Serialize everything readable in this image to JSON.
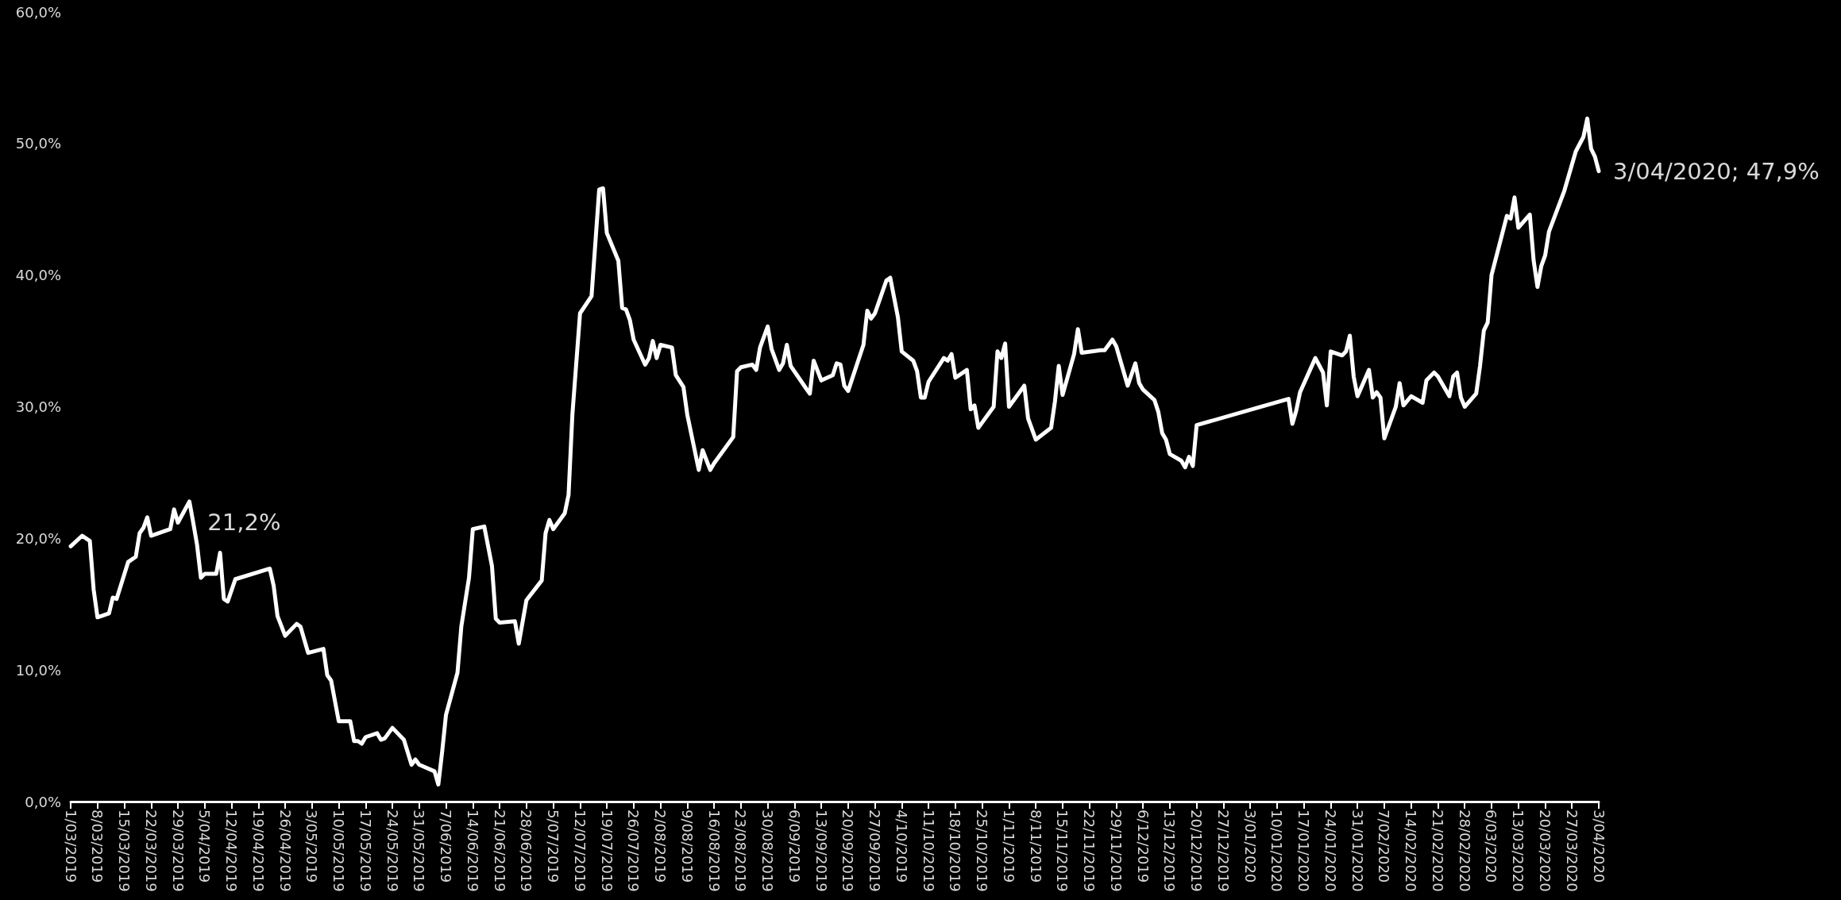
{
  "chart_data": {
    "type": "line",
    "line_style": "solid",
    "marker": "none",
    "grid": false,
    "x": [
      "2019-03-01",
      "2019-03-04",
      "2019-03-06",
      "2019-03-07",
      "2019-03-08",
      "2019-03-11",
      "2019-03-12",
      "2019-03-13",
      "2019-03-16",
      "2019-03-18",
      "2019-03-19",
      "2019-03-20",
      "2019-03-21",
      "2019-03-22",
      "2019-03-27",
      "2019-03-28",
      "2019-03-29",
      "2019-04-01",
      "2019-04-02",
      "2019-04-03",
      "2019-04-04",
      "2019-04-05",
      "2019-04-08",
      "2019-04-09",
      "2019-04-10",
      "2019-04-11",
      "2019-04-13",
      "2019-04-22",
      "2019-04-23",
      "2019-04-24",
      "2019-04-26",
      "2019-04-29",
      "2019-04-30",
      "2019-05-02",
      "2019-05-06",
      "2019-05-07",
      "2019-05-08",
      "2019-05-10",
      "2019-05-13",
      "2019-05-14",
      "2019-05-15",
      "2019-05-16",
      "2019-05-17",
      "2019-05-20",
      "2019-05-21",
      "2019-05-22",
      "2019-05-24",
      "2019-05-27",
      "2019-05-29",
      "2019-05-30",
      "2019-05-31",
      "2019-06-04",
      "2019-06-05",
      "2019-06-06",
      "2019-06-07",
      "2019-06-10",
      "2019-06-11",
      "2019-06-13",
      "2019-06-14",
      "2019-06-17",
      "2019-06-19",
      "2019-06-20",
      "2019-06-21",
      "2019-06-25",
      "2019-06-26",
      "2019-06-28",
      "2019-07-02",
      "2019-07-03",
      "2019-07-04",
      "2019-07-05",
      "2019-07-08",
      "2019-07-09",
      "2019-07-10",
      "2019-07-12",
      "2019-07-15",
      "2019-07-17",
      "2019-07-18",
      "2019-07-19",
      "2019-07-22",
      "2019-07-23",
      "2019-07-24",
      "2019-07-25",
      "2019-07-26",
      "2019-07-29",
      "2019-07-30",
      "2019-07-31",
      "2019-08-01",
      "2019-08-02",
      "2019-08-05",
      "2019-08-06",
      "2019-08-08",
      "2019-08-09",
      "2019-08-12",
      "2019-08-13",
      "2019-08-15",
      "2019-08-16",
      "2019-08-21",
      "2019-08-22",
      "2019-08-23",
      "2019-08-26",
      "2019-08-27",
      "2019-08-28",
      "2019-08-30",
      "2019-08-31",
      "2019-09-02",
      "2019-09-03",
      "2019-09-04",
      "2019-09-05",
      "2019-09-09",
      "2019-09-10",
      "2019-09-11",
      "2019-09-13",
      "2019-09-16",
      "2019-09-17",
      "2019-09-18",
      "2019-09-19",
      "2019-09-20",
      "2019-09-24",
      "2019-09-25",
      "2019-09-26",
      "2019-09-27",
      "2019-09-30",
      "2019-10-01",
      "2019-10-03",
      "2019-10-04",
      "2019-10-07",
      "2019-10-08",
      "2019-10-09",
      "2019-10-10",
      "2019-10-11",
      "2019-10-15",
      "2019-10-16",
      "2019-10-17",
      "2019-10-18",
      "2019-10-21",
      "2019-10-22",
      "2019-10-23",
      "2019-10-24",
      "2019-10-25",
      "2019-10-28",
      "2019-10-29",
      "2019-10-30",
      "2019-10-31",
      "2019-11-01",
      "2019-11-05",
      "2019-11-06",
      "2019-11-08",
      "2019-11-12",
      "2019-11-13",
      "2019-11-14",
      "2019-11-15",
      "2019-11-18",
      "2019-11-19",
      "2019-11-20",
      "2019-11-25",
      "2019-11-26",
      "2019-11-28",
      "2019-11-29",
      "2019-12-02",
      "2019-12-04",
      "2019-12-05",
      "2019-12-06",
      "2019-12-09",
      "2019-12-10",
      "2019-12-11",
      "2019-12-12",
      "2019-12-13",
      "2019-12-16",
      "2019-12-17",
      "2019-12-18",
      "2019-12-19",
      "2019-12-20",
      "2020-01-13",
      "2020-01-14",
      "2020-01-15",
      "2020-01-16",
      "2020-01-20",
      "2020-01-22",
      "2020-01-23",
      "2020-01-24",
      "2020-01-27",
      "2020-01-28",
      "2020-01-29",
      "2020-01-30",
      "2020-01-31",
      "2020-02-03",
      "2020-02-04",
      "2020-02-05",
      "2020-02-06",
      "2020-02-07",
      "2020-02-10",
      "2020-02-11",
      "2020-02-12",
      "2020-02-14",
      "2020-02-17",
      "2020-02-18",
      "2020-02-20",
      "2020-02-21",
      "2020-02-24",
      "2020-02-25",
      "2020-02-26",
      "2020-02-27",
      "2020-02-28",
      "2020-03-02",
      "2020-03-03",
      "2020-03-04",
      "2020-03-05",
      "2020-03-06",
      "2020-03-10",
      "2020-03-11",
      "2020-03-12",
      "2020-03-13",
      "2020-03-16",
      "2020-03-17",
      "2020-03-18",
      "2020-03-19",
      "2020-03-20",
      "2020-03-21",
      "2020-03-25",
      "2020-03-28",
      "2020-03-30",
      "2020-03-31",
      "2020-04-01",
      "2020-04-02",
      "2020-04-03"
    ],
    "series": [
      {
        "color": "#ffffff",
        "values": [
          19.4,
          20.2,
          19.8,
          16.1,
          14.0,
          14.3,
          15.5,
          15.4,
          18.2,
          18.6,
          20.4,
          20.8,
          21.6,
          20.2,
          20.7,
          22.2,
          21.2,
          22.8,
          21.2,
          19.5,
          17.0,
          17.3,
          17.3,
          18.9,
          15.4,
          15.2,
          16.9,
          17.7,
          16.4,
          14.1,
          12.6,
          13.5,
          13.3,
          11.3,
          11.6,
          9.6,
          9.2,
          6.1,
          6.1,
          4.6,
          4.6,
          4.4,
          4.9,
          5.2,
          4.7,
          4.8,
          5.6,
          4.7,
          2.8,
          3.2,
          2.8,
          2.3,
          1.3,
          3.8,
          6.6,
          9.8,
          13.3,
          17.0,
          20.7,
          20.9,
          17.9,
          13.9,
          13.6,
          13.7,
          12.0,
          15.3,
          16.8,
          20.4,
          21.4,
          20.7,
          21.9,
          23.3,
          29.4,
          37.1,
          38.4,
          46.5,
          46.6,
          43.2,
          41.1,
          37.5,
          37.4,
          36.6,
          35.1,
          33.2,
          33.7,
          35.0,
          33.7,
          34.7,
          34.5,
          32.4,
          31.5,
          29.4,
          25.2,
          26.7,
          25.2,
          25.7,
          27.7,
          32.7,
          33.0,
          33.2,
          32.8,
          34.5,
          36.1,
          34.4,
          32.8,
          33.3,
          34.7,
          33.1,
          31.4,
          31.0,
          33.5,
          32.0,
          32.4,
          33.3,
          33.2,
          31.6,
          31.2,
          34.7,
          37.3,
          36.7,
          37.1,
          39.6,
          39.8,
          36.8,
          34.2,
          33.5,
          32.7,
          30.7,
          30.7,
          31.9,
          33.7,
          33.5,
          34.0,
          32.2,
          32.8,
          29.8,
          30.1,
          28.4,
          28.8,
          30.0,
          34.2,
          33.7,
          34.8,
          30.0,
          31.6,
          29.1,
          27.5,
          28.4,
          30.4,
          33.1,
          30.9,
          34.0,
          35.9,
          34.1,
          34.3,
          34.3,
          35.1,
          34.6,
          31.6,
          33.3,
          31.8,
          31.3,
          30.5,
          29.6,
          28.0,
          27.5,
          26.4,
          25.9,
          25.4,
          26.2,
          25.5,
          28.6,
          30.6,
          28.7,
          29.7,
          31.1,
          33.7,
          32.6,
          30.1,
          34.2,
          33.9,
          34.2,
          35.4,
          32.3,
          30.8,
          32.8,
          30.7,
          31.1,
          30.7,
          27.6,
          30.0,
          31.8,
          30.1,
          30.8,
          30.3,
          32.0,
          32.6,
          32.3,
          30.8,
          32.3,
          32.6,
          30.7,
          30.0,
          31.0,
          33.1,
          35.8,
          36.4,
          40.0,
          44.5,
          44.3,
          45.9,
          43.6,
          44.6,
          41.1,
          39.1,
          40.7,
          41.5,
          43.3,
          46.4,
          49.4,
          50.5,
          51.9,
          49.6,
          49.0,
          47.9
        ]
      }
    ],
    "annotations": [
      {
        "text": "21,2%",
        "x": "2019-04-02",
        "y": 21.2
      },
      {
        "text": "3/04/2020; 47,9%",
        "x": "2020-04-03",
        "y": 47.9
      }
    ],
    "xlim": [
      "2019-03-01",
      "2020-04-03"
    ],
    "ylim": [
      0,
      60
    ],
    "yticks": [
      {
        "value": 0,
        "label": "0,0%"
      },
      {
        "value": 10,
        "label": "10,0%"
      },
      {
        "value": 20,
        "label": "20,0%"
      },
      {
        "value": 30,
        "label": "30,0%"
      },
      {
        "value": 40,
        "label": "40,0%"
      },
      {
        "value": 50,
        "label": "50,0%"
      },
      {
        "value": 60,
        "label": "60,0%"
      }
    ],
    "xticks": [
      {
        "value": "2019-03-01",
        "label": "1/03/2019"
      },
      {
        "value": "2019-03-08",
        "label": "8/03/2019"
      },
      {
        "value": "2019-03-15",
        "label": "15/03/2019"
      },
      {
        "value": "2019-03-22",
        "label": "22/03/2019"
      },
      {
        "value": "2019-03-29",
        "label": "29/03/2019"
      },
      {
        "value": "2019-04-05",
        "label": "5/04/2019"
      },
      {
        "value": "2019-04-12",
        "label": "12/04/2019"
      },
      {
        "value": "2019-04-19",
        "label": "19/04/2019"
      },
      {
        "value": "2019-04-26",
        "label": "26/04/2019"
      },
      {
        "value": "2019-05-03",
        "label": "3/05/2019"
      },
      {
        "value": "2019-05-10",
        "label": "10/05/2019"
      },
      {
        "value": "2019-05-17",
        "label": "17/05/2019"
      },
      {
        "value": "2019-05-24",
        "label": "24/05/2019"
      },
      {
        "value": "2019-05-31",
        "label": "31/05/2019"
      },
      {
        "value": "2019-06-07",
        "label": "7/06/2019"
      },
      {
        "value": "2019-06-14",
        "label": "14/06/2019"
      },
      {
        "value": "2019-06-21",
        "label": "21/06/2019"
      },
      {
        "value": "2019-06-28",
        "label": "28/06/2019"
      },
      {
        "value": "2019-07-05",
        "label": "5/07/2019"
      },
      {
        "value": "2019-07-12",
        "label": "12/07/2019"
      },
      {
        "value": "2019-07-19",
        "label": "19/07/2019"
      },
      {
        "value": "2019-07-26",
        "label": "26/07/2019"
      },
      {
        "value": "2019-08-02",
        "label": "2/08/2019"
      },
      {
        "value": "2019-08-09",
        "label": "9/08/2019"
      },
      {
        "value": "2019-08-16",
        "label": "16/08/2019"
      },
      {
        "value": "2019-08-23",
        "label": "23/08/2019"
      },
      {
        "value": "2019-08-30",
        "label": "30/08/2019"
      },
      {
        "value": "2019-09-06",
        "label": "6/09/2019"
      },
      {
        "value": "2019-09-13",
        "label": "13/09/2019"
      },
      {
        "value": "2019-09-20",
        "label": "20/09/2019"
      },
      {
        "value": "2019-09-27",
        "label": "27/09/2019"
      },
      {
        "value": "2019-10-04",
        "label": "4/10/2019"
      },
      {
        "value": "2019-10-11",
        "label": "11/10/2019"
      },
      {
        "value": "2019-10-18",
        "label": "18/10/2019"
      },
      {
        "value": "2019-10-25",
        "label": "25/10/2019"
      },
      {
        "value": "2019-11-01",
        "label": "1/11/2019"
      },
      {
        "value": "2019-11-08",
        "label": "8/11/2019"
      },
      {
        "value": "2019-11-15",
        "label": "15/11/2019"
      },
      {
        "value": "2019-11-22",
        "label": "22/11/2019"
      },
      {
        "value": "2019-11-29",
        "label": "29/11/2019"
      },
      {
        "value": "2019-12-06",
        "label": "6/12/2019"
      },
      {
        "value": "2019-12-13",
        "label": "13/12/2019"
      },
      {
        "value": "2019-12-20",
        "label": "20/12/2019"
      },
      {
        "value": "2019-12-27",
        "label": "27/12/2019"
      },
      {
        "value": "2020-01-03",
        "label": "3/01/2020"
      },
      {
        "value": "2020-01-10",
        "label": "10/01/2020"
      },
      {
        "value": "2020-01-17",
        "label": "17/01/2020"
      },
      {
        "value": "2020-01-24",
        "label": "24/01/2020"
      },
      {
        "value": "2020-01-31",
        "label": "31/01/2020"
      },
      {
        "value": "2020-02-07",
        "label": "7/02/2020"
      },
      {
        "value": "2020-02-14",
        "label": "14/02/2020"
      },
      {
        "value": "2020-02-21",
        "label": "21/02/2020"
      },
      {
        "value": "2020-02-28",
        "label": "28/02/2020"
      },
      {
        "value": "2020-03-06",
        "label": "6/03/2020"
      },
      {
        "value": "2020-03-13",
        "label": "13/03/2020"
      },
      {
        "value": "2020-03-20",
        "label": "20/03/2020"
      },
      {
        "value": "2020-03-27",
        "label": "27/03/2020"
      },
      {
        "value": "2020-04-03",
        "label": "3/04/2020"
      }
    ]
  }
}
